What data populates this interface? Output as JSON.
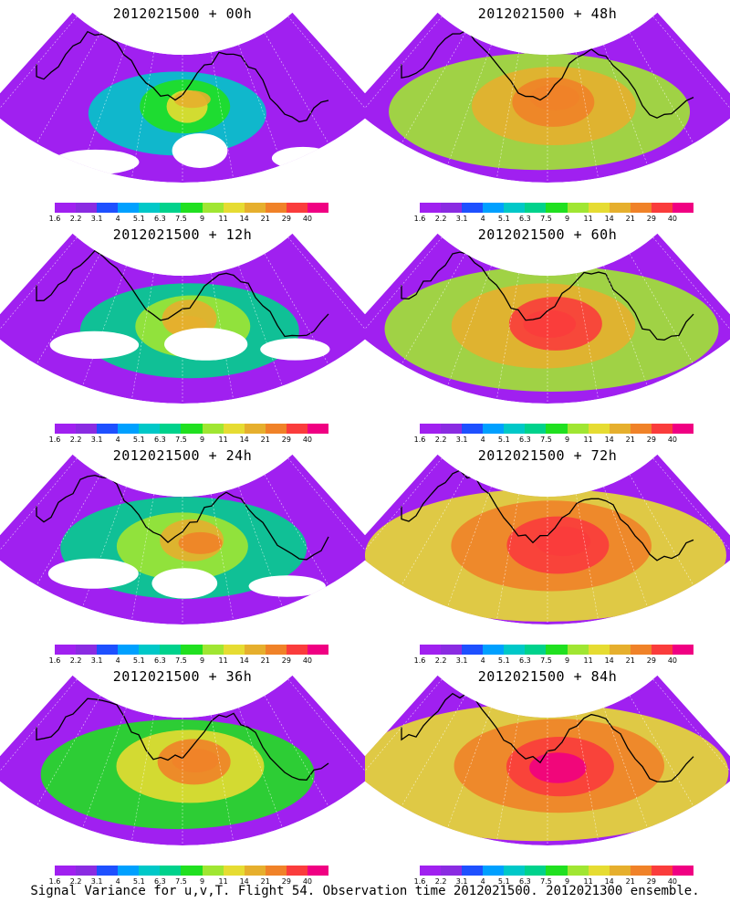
{
  "footer": "Signal Variance for u,v,T. Flight 54. Observation time 2012021500. 2012021300 ensemble.",
  "colorbar": {
    "labels": [
      "1.6",
      "2.2",
      "3.1",
      "4",
      "5.1",
      "6.3",
      "7.5",
      "9",
      "11",
      "14",
      "21",
      "29",
      "40"
    ],
    "colors": [
      "#a020f0",
      "#8a2be2",
      "#1e50ff",
      "#00a0ff",
      "#00c8c8",
      "#00d28c",
      "#20e020",
      "#a0e632",
      "#e6dc32",
      "#e6af2d",
      "#f08228",
      "#fa3c3c",
      "#f00082"
    ]
  },
  "panels": [
    {
      "title": "2012021500 + 00h",
      "intensity": 0.15
    },
    {
      "title": "2012021500 + 48h",
      "intensity": 0.6
    },
    {
      "title": "2012021500 + 12h",
      "intensity": 0.3
    },
    {
      "title": "2012021500 + 60h",
      "intensity": 0.72
    },
    {
      "title": "2012021500 + 24h",
      "intensity": 0.4
    },
    {
      "title": "2012021500 + 72h",
      "intensity": 0.82
    },
    {
      "title": "2012021500 + 36h",
      "intensity": 0.5
    },
    {
      "title": "2012021500 + 84h",
      "intensity": 0.88
    }
  ]
}
